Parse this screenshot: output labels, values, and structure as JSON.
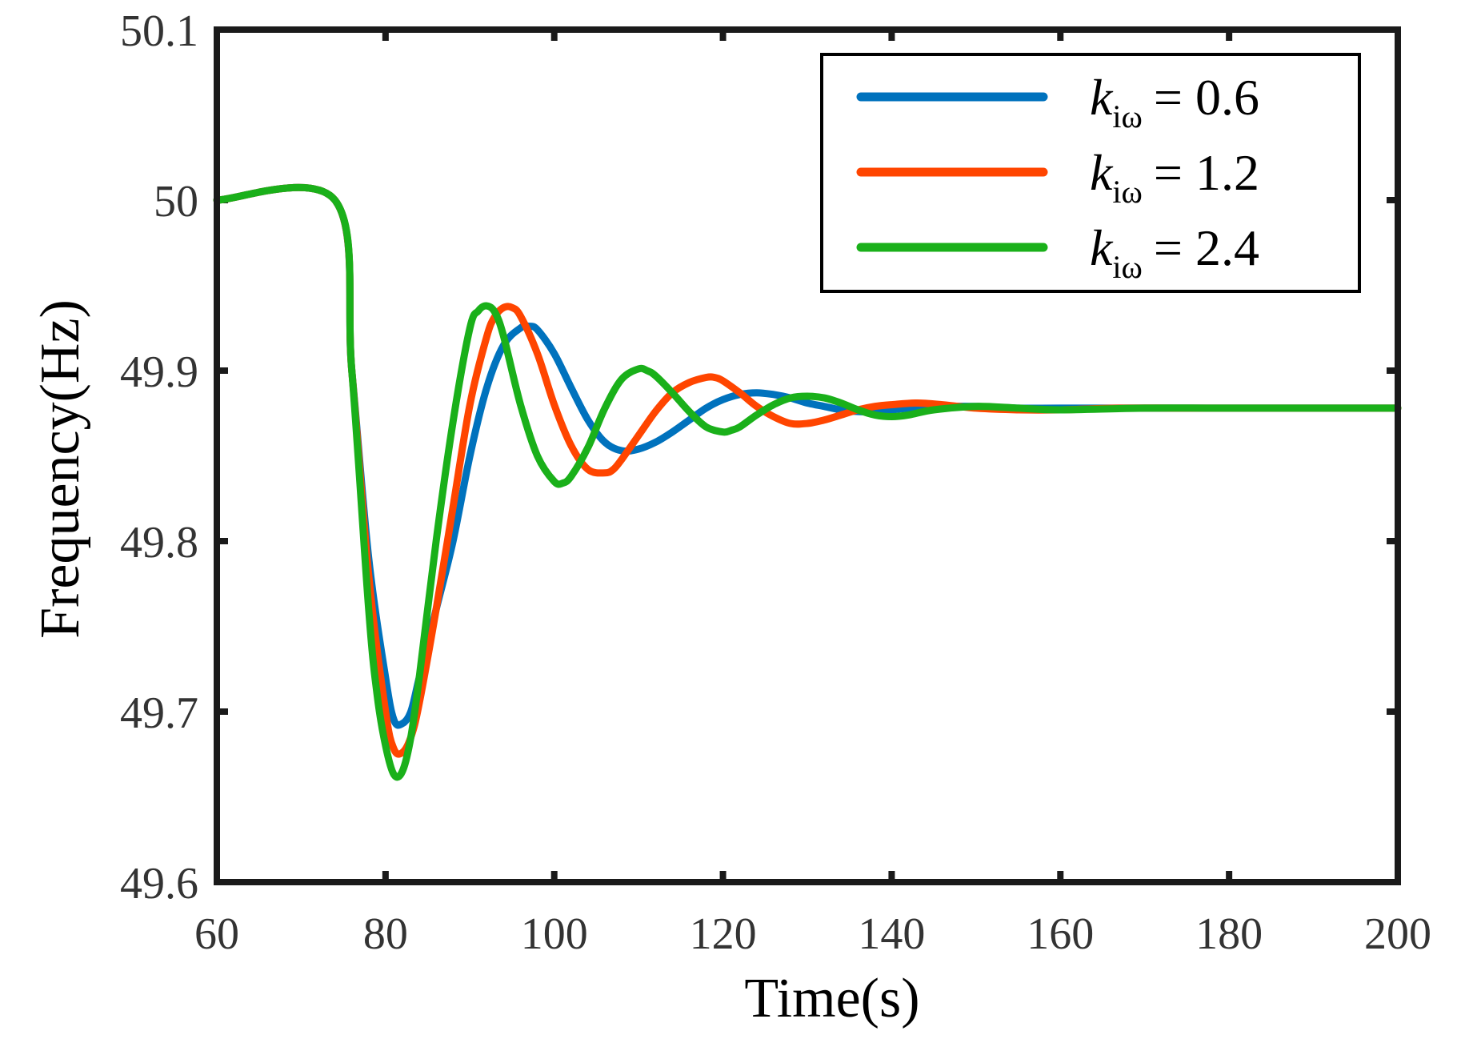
{
  "chart_data": {
    "type": "line",
    "title": "",
    "xlabel": "Time(s)",
    "ylabel": "Frequency(Hz)",
    "xlim": [
      60,
      200
    ],
    "ylim": [
      49.6,
      50.1
    ],
    "x_ticks": [
      60,
      80,
      100,
      120,
      140,
      160,
      180,
      200
    ],
    "x_tick_labels": [
      "60",
      "80",
      "100",
      "120",
      "140",
      "160",
      "180",
      "200"
    ],
    "y_ticks": [
      49.6,
      49.7,
      49.8,
      49.9,
      50,
      50.1
    ],
    "y_tick_labels": [
      "49.6",
      "49.7",
      "49.8",
      "49.9",
      "50",
      "50.1"
    ],
    "grid": false,
    "legend_position": "top-right",
    "series": [
      {
        "name": "k_iω = 0.6",
        "legend_symbol": "k",
        "legend_subscript": "iω",
        "legend_value": "= 0.6",
        "color": "#0072BD",
        "x": [
          60,
          74,
          76,
          78,
          80,
          81,
          82,
          83,
          84,
          86,
          88,
          90,
          92,
          94,
          96,
          97,
          98,
          100,
          102,
          104,
          106,
          108,
          110,
          112,
          114,
          116,
          118,
          120,
          122,
          124,
          126,
          128,
          130,
          132,
          134,
          136,
          138,
          140,
          142,
          145,
          150,
          155,
          160,
          170,
          180,
          190,
          200
        ],
        "values": [
          50.0,
          50.0,
          49.9,
          49.79,
          49.72,
          49.695,
          49.693,
          49.7,
          49.72,
          49.76,
          49.8,
          49.85,
          49.89,
          49.915,
          49.925,
          49.926,
          49.924,
          49.91,
          49.89,
          49.871,
          49.858,
          49.853,
          49.854,
          49.858,
          49.864,
          49.871,
          49.878,
          49.883,
          49.886,
          49.887,
          49.886,
          49.884,
          49.881,
          49.879,
          49.877,
          49.876,
          49.876,
          49.877,
          49.878,
          49.879,
          49.879,
          49.878,
          49.878,
          49.878,
          49.878,
          49.878,
          49.878
        ]
      },
      {
        "name": "k_iω = 1.2",
        "legend_symbol": "k",
        "legend_subscript": "iω",
        "legend_value": "= 1.2",
        "color": "#FF4500",
        "x": [
          60,
          74,
          76,
          78,
          80,
          81,
          82,
          83,
          84,
          86,
          88,
          90,
          92,
          93,
          94,
          95,
          96,
          98,
          100,
          102,
          104,
          106,
          107,
          108,
          110,
          112,
          114,
          116,
          118,
          119,
          120,
          122,
          124,
          126,
          128,
          130,
          132,
          134,
          136,
          138,
          140,
          143,
          146,
          150,
          155,
          160,
          167,
          175,
          190,
          200
        ],
        "values": [
          50.0,
          50.0,
          49.9,
          49.78,
          49.7,
          49.678,
          49.676,
          49.685,
          49.705,
          49.76,
          49.82,
          49.88,
          49.92,
          49.932,
          49.937,
          49.937,
          49.932,
          49.91,
          49.88,
          49.856,
          49.842,
          49.84,
          49.842,
          49.848,
          49.862,
          49.876,
          49.887,
          49.893,
          49.896,
          49.896,
          49.894,
          49.887,
          49.879,
          49.873,
          49.869,
          49.869,
          49.871,
          49.874,
          49.877,
          49.879,
          49.88,
          49.881,
          49.88,
          49.878,
          49.877,
          49.877,
          49.878,
          49.878,
          49.878,
          49.878
        ]
      },
      {
        "name": "k_iω = 2.4",
        "legend_symbol": "k",
        "legend_subscript": "iω",
        "legend_value": "= 2.4",
        "color": "#1AB01A",
        "x": [
          60,
          74,
          76,
          78,
          79,
          80,
          81,
          82,
          83,
          84,
          86,
          88,
          90,
          91,
          92,
          93,
          94,
          96,
          98,
          100,
          101,
          102,
          104,
          106,
          108,
          110,
          111,
          112,
          114,
          116,
          118,
          120,
          121,
          122,
          124,
          126,
          128,
          130,
          132,
          134,
          136,
          138,
          140,
          142,
          145,
          150,
          155,
          160,
          170,
          180,
          200
        ],
        "values": [
          50.0,
          50.0,
          49.9,
          49.76,
          49.71,
          49.68,
          49.663,
          49.665,
          49.685,
          49.72,
          49.8,
          49.87,
          49.925,
          49.935,
          49.938,
          49.934,
          49.92,
          49.88,
          49.85,
          49.835,
          49.834,
          49.838,
          49.855,
          49.878,
          49.895,
          49.901,
          49.9,
          49.897,
          49.887,
          49.876,
          49.867,
          49.864,
          49.865,
          49.867,
          49.874,
          49.88,
          49.884,
          49.885,
          49.884,
          49.881,
          49.877,
          49.874,
          49.873,
          49.874,
          49.877,
          49.879,
          49.878,
          49.877,
          49.878,
          49.878,
          49.878
        ]
      }
    ]
  }
}
